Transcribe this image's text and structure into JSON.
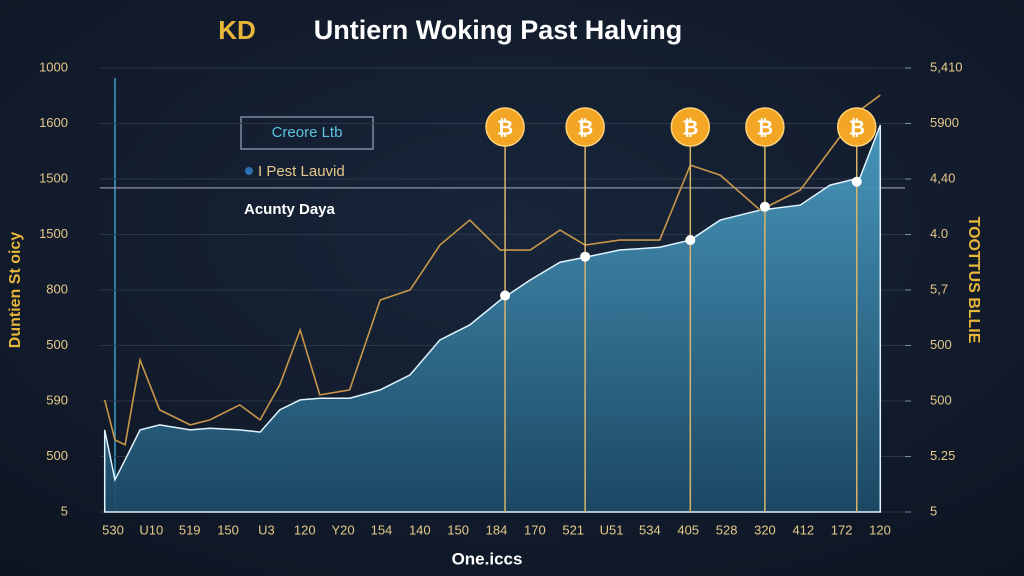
{
  "chart_data": {
    "type": "area",
    "logo": "KD",
    "title": "Untiern Woking Past Halving",
    "xlabel": "One.iccs",
    "ylabel": "Duntien St oicy",
    "y2label": "TOOTTUS BLLIE",
    "legend_box": "Creore Ltb",
    "legend_item": "I Pest Lauvid",
    "annotation": "Acunty Daya",
    "xlim": [
      0,
      100
    ],
    "ylim": [
      0,
      8
    ],
    "y2lim": [
      0,
      8
    ],
    "yticks": [
      {
        "value": 0,
        "label": "5"
      },
      {
        "value": 1,
        "label": "500"
      },
      {
        "value": 2,
        "label": "590"
      },
      {
        "value": 3,
        "label": "500"
      },
      {
        "value": 4,
        "label": "800"
      },
      {
        "value": 5,
        "label": "1500"
      },
      {
        "value": 6,
        "label": "1500"
      },
      {
        "value": 7,
        "label": "1600"
      },
      {
        "value": 8,
        "label": "1000"
      }
    ],
    "y2ticks": [
      {
        "value": 0,
        "label": "5"
      },
      {
        "value": 1,
        "label": "5.25"
      },
      {
        "value": 2,
        "label": "500"
      },
      {
        "value": 3,
        "label": "500"
      },
      {
        "value": 4,
        "label": "5,7"
      },
      {
        "value": 5,
        "label": "4.0"
      },
      {
        "value": 6,
        "label": "4,40"
      },
      {
        "value": 7,
        "label": "5900"
      },
      {
        "value": 8,
        "label": "5,410"
      }
    ],
    "xtick_labels": [
      "530",
      "U10",
      "519",
      "150",
      "U3",
      "120",
      "Y20",
      "154",
      "140",
      "150",
      "184",
      "170",
      "521",
      "U51",
      "534",
      "405",
      "528",
      "320",
      "412",
      "172",
      "120"
    ],
    "x": [
      0.6,
      1.9,
      3.2,
      5.1,
      7.6,
      11.5,
      14,
      17.8,
      20.4,
      22.9,
      25.5,
      28,
      31.8,
      35.7,
      39.5,
      43.3,
      47.1,
      51,
      54.8,
      58.6,
      61.8,
      66.2,
      71.3,
      75.2,
      79,
      84.1,
      89.2,
      93,
      96.8,
      99.4
    ],
    "series": [
      {
        "name": "Creore Ltb",
        "kind": "area",
        "color": "#3d8fb5",
        "values": [
          1.48,
          0.58,
          0.94,
          1.48,
          1.57,
          1.48,
          1.51,
          1.48,
          1.44,
          1.84,
          2.02,
          2.05,
          2.05,
          2.2,
          2.47,
          3.1,
          3.37,
          3.82,
          4.18,
          4.5,
          4.59,
          4.72,
          4.77,
          4.9,
          5.26,
          5.44,
          5.53,
          5.89,
          6.02,
          6.97
        ]
      },
      {
        "name": "I Pest Lauvid",
        "kind": "line",
        "color": "#c8974a",
        "values": [
          2.02,
          1.3,
          1.21,
          2.74,
          1.84,
          1.57,
          1.66,
          1.93,
          1.66,
          2.29,
          3.28,
          2.11,
          2.2,
          3.82,
          4.0,
          4.81,
          5.26,
          4.72,
          4.72,
          5.08,
          4.81,
          4.9,
          4.9,
          6.25,
          6.07,
          5.44,
          5.8,
          6.52,
          7.24,
          7.51
        ]
      }
    ],
    "halvings": {
      "symbol": "₿",
      "color": "#f2a623",
      "x": [
        51.6,
        61.8,
        75.2,
        84.7,
        96.4
      ],
      "values": [
        3.9,
        4.6,
        4.9,
        5.5,
        5.95
      ]
    },
    "reference_line": 5.84
  }
}
